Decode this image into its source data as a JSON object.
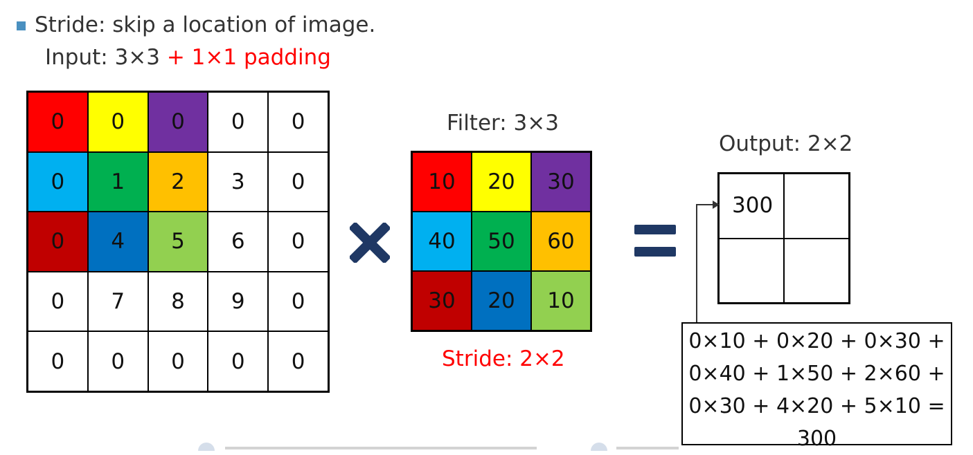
{
  "bullet": {
    "text": "Stride: skip a location of image.",
    "input_prefix": "Input: 3×3",
    "input_suffix": " + 1×1 padding"
  },
  "input_grid": [
    {
      "v": "0",
      "c": "#ff0000"
    },
    {
      "v": "0",
      "c": "#ffff00"
    },
    {
      "v": "0",
      "c": "#7030a0"
    },
    {
      "v": "0",
      "c": "#ffffff"
    },
    {
      "v": "0",
      "c": "#ffffff"
    },
    {
      "v": "0",
      "c": "#00b0f0"
    },
    {
      "v": "1",
      "c": "#00b050"
    },
    {
      "v": "2",
      "c": "#ffc000"
    },
    {
      "v": "3",
      "c": "#ffffff"
    },
    {
      "v": "0",
      "c": "#ffffff"
    },
    {
      "v": "0",
      "c": "#c00000"
    },
    {
      "v": "4",
      "c": "#0070c0"
    },
    {
      "v": "5",
      "c": "#92d050"
    },
    {
      "v": "6",
      "c": "#ffffff"
    },
    {
      "v": "0",
      "c": "#ffffff"
    },
    {
      "v": "0",
      "c": "#ffffff"
    },
    {
      "v": "7",
      "c": "#ffffff"
    },
    {
      "v": "8",
      "c": "#ffffff"
    },
    {
      "v": "9",
      "c": "#ffffff"
    },
    {
      "v": "0",
      "c": "#ffffff"
    },
    {
      "v": "0",
      "c": "#ffffff"
    },
    {
      "v": "0",
      "c": "#ffffff"
    },
    {
      "v": "0",
      "c": "#ffffff"
    },
    {
      "v": "0",
      "c": "#ffffff"
    },
    {
      "v": "0",
      "c": "#ffffff"
    }
  ],
  "operator_times": "multiply-icon",
  "operator_equals": "equals-icon",
  "filter": {
    "title": "Filter: 3×3",
    "cells": [
      {
        "v": "10",
        "c": "#ff0000"
      },
      {
        "v": "20",
        "c": "#ffff00"
      },
      {
        "v": "30",
        "c": "#7030a0"
      },
      {
        "v": "40",
        "c": "#00b0f0"
      },
      {
        "v": "50",
        "c": "#00b050"
      },
      {
        "v": "60",
        "c": "#ffc000"
      },
      {
        "v": "30",
        "c": "#c00000"
      },
      {
        "v": "20",
        "c": "#0070c0"
      },
      {
        "v": "10",
        "c": "#92d050"
      }
    ],
    "stride": "Stride: 2×2"
  },
  "output": {
    "title": "Output: 2×2",
    "cells": [
      "300",
      "",
      "",
      ""
    ]
  },
  "formula": {
    "lines": [
      "0×10 + 0×20 + 0×30 +",
      "0×40 + 1×50 + 2×60 +",
      "0×30 + 4×20 + 5×10 =",
      "300"
    ]
  },
  "colors": {
    "accent_red": "#ff0000",
    "bullet_blue": "#4a90c0",
    "operator_navy": "#1f3864"
  }
}
